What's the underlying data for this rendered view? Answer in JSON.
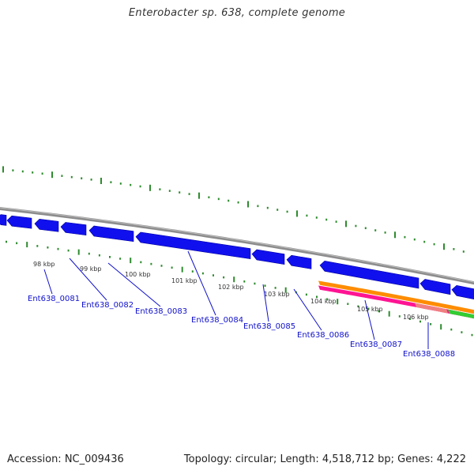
{
  "title": "Enterobacter sp. 638, complete genome",
  "footer": {
    "accession": "Accession: NC_009436",
    "topology": "Topology: circular; Length: 4,518,712 bp; Genes: 4,222"
  },
  "colors": {
    "backbone": "#8c8c8c",
    "gene": "#1010ee",
    "ticks": "#2e8b2e",
    "label": "#1010cc",
    "track_orange": "#ff8c00",
    "track_pink": "#ff1493",
    "track_salmon": "#f08080",
    "track_green": "#32cd32"
  },
  "kbp_labels": [
    "98 kbp",
    "99 kbp",
    "100 kbp",
    "101 kbp",
    "102 kbp",
    "103 kbp",
    "104 kbp",
    "105 kbp",
    "106 kbp"
  ],
  "genes": [
    "Ent638_0081",
    "Ent638_0082",
    "Ent638_0083",
    "Ent638_0084",
    "Ent638_0085",
    "Ent638_0086",
    "Ent638_0087",
    "Ent638_0088"
  ]
}
